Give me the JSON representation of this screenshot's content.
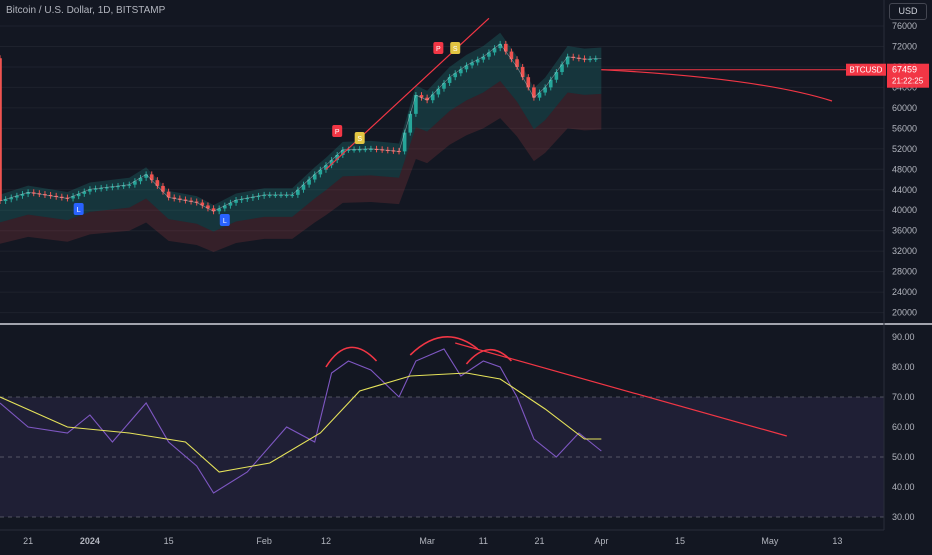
{
  "header": {
    "title": "Bitcoin / U.S. Dollar, 1D, BITSTAMP",
    "currency": "USD"
  },
  "price_scale": {
    "ticks": [
      "76000",
      "72000",
      "68000",
      "64000",
      "60000",
      "56000",
      "52000",
      "48000",
      "44000",
      "40000",
      "36000",
      "32000",
      "28000",
      "24000",
      "20000"
    ]
  },
  "rsi_scale": {
    "ticks": [
      "90.00",
      "80.00",
      "70.00",
      "60.00",
      "50.00",
      "40.00",
      "30.00"
    ]
  },
  "time_axis": {
    "ticks": [
      "21",
      "2024",
      "15",
      "Feb",
      "12",
      "Mar",
      "11",
      "21",
      "Apr",
      "15",
      "May",
      "13"
    ]
  },
  "markers": {
    "symbol_tag": "BTCUSD",
    "last_price": "67459",
    "countdown": "21:22:25",
    "signal_p": "P",
    "signal_s": "S",
    "signal_l": "L"
  },
  "colors": {
    "bg": "#131722",
    "up": "#26a69a",
    "down": "#ef5350",
    "rsi": "#7e57c2",
    "rsi_ma": "#e6e35a",
    "trend": "#f23645"
  },
  "chart_data": [
    {
      "type": "line",
      "title": "Bitcoin / U.S. Dollar, 1D, BITSTAMP",
      "x_range": [
        "2023-12-16",
        "2024-05-17"
      ],
      "ylim": [
        18000,
        78000
      ],
      "y_ticks": [
        20000,
        24000,
        28000,
        32000,
        36000,
        40000,
        44000,
        48000,
        52000,
        56000,
        60000,
        64000,
        68000,
        72000,
        76000
      ],
      "last_price": 67459,
      "series": [
        {
          "name": "BTCUSD",
          "x": [
            "2023-12-16",
            "2023-12-21",
            "2023-12-28",
            "2024-01-01",
            "2024-01-08",
            "2024-01-11",
            "2024-01-15",
            "2024-01-20",
            "2024-01-23",
            "2024-01-27",
            "2024-02-01",
            "2024-02-06",
            "2024-02-10",
            "2024-02-12",
            "2024-02-15",
            "2024-02-20",
            "2024-02-25",
            "2024-02-28",
            "2024-03-01",
            "2024-03-05",
            "2024-03-08",
            "2024-03-11",
            "2024-03-14",
            "2024-03-17",
            "2024-03-20",
            "2024-03-22",
            "2024-03-26",
            "2024-03-29",
            "2024-04-01"
          ],
          "values": [
            41800,
            43500,
            42300,
            44100,
            45000,
            47000,
            42500,
            41500,
            39800,
            42000,
            43000,
            43000,
            47000,
            48800,
            51800,
            52000,
            51500,
            62500,
            61500,
            66000,
            68300,
            70000,
            72500,
            68000,
            62000,
            64000,
            70000,
            69500,
            69700
          ]
        }
      ]
    },
    {
      "type": "line",
      "title": "RSI",
      "ylim": [
        26,
        93
      ],
      "y_ticks": [
        30,
        40,
        50,
        60,
        70,
        80,
        90
      ],
      "series": [
        {
          "name": "RSI",
          "x": [
            "2023-12-16",
            "2023-12-21",
            "2023-12-28",
            "2024-01-01",
            "2024-01-05",
            "2024-01-11",
            "2024-01-15",
            "2024-01-20",
            "2024-01-23",
            "2024-01-29",
            "2024-02-05",
            "2024-02-10",
            "2024-02-13",
            "2024-02-16",
            "2024-02-20",
            "2024-02-25",
            "2024-02-28",
            "2024-03-04",
            "2024-03-07",
            "2024-03-11",
            "2024-03-14",
            "2024-03-17",
            "2024-03-20",
            "2024-03-24",
            "2024-03-28",
            "2024-04-01"
          ],
          "values": [
            68,
            60,
            58,
            64,
            55,
            68,
            55,
            47,
            38,
            45,
            60,
            55,
            78,
            82,
            79,
            70,
            82,
            86,
            77,
            82,
            80,
            70,
            56,
            50,
            58,
            52
          ]
        },
        {
          "name": "RSI MA",
          "x": [
            "2023-12-16",
            "2023-12-28",
            "2024-01-08",
            "2024-01-18",
            "2024-01-24",
            "2024-02-02",
            "2024-02-11",
            "2024-02-18",
            "2024-02-27",
            "2024-03-08",
            "2024-03-14",
            "2024-03-22",
            "2024-03-29",
            "2024-04-01"
          ],
          "values": [
            70,
            60,
            58,
            55,
            45,
            48,
            58,
            72,
            77,
            78,
            76,
            66,
            56,
            56
          ]
        }
      ]
    }
  ]
}
